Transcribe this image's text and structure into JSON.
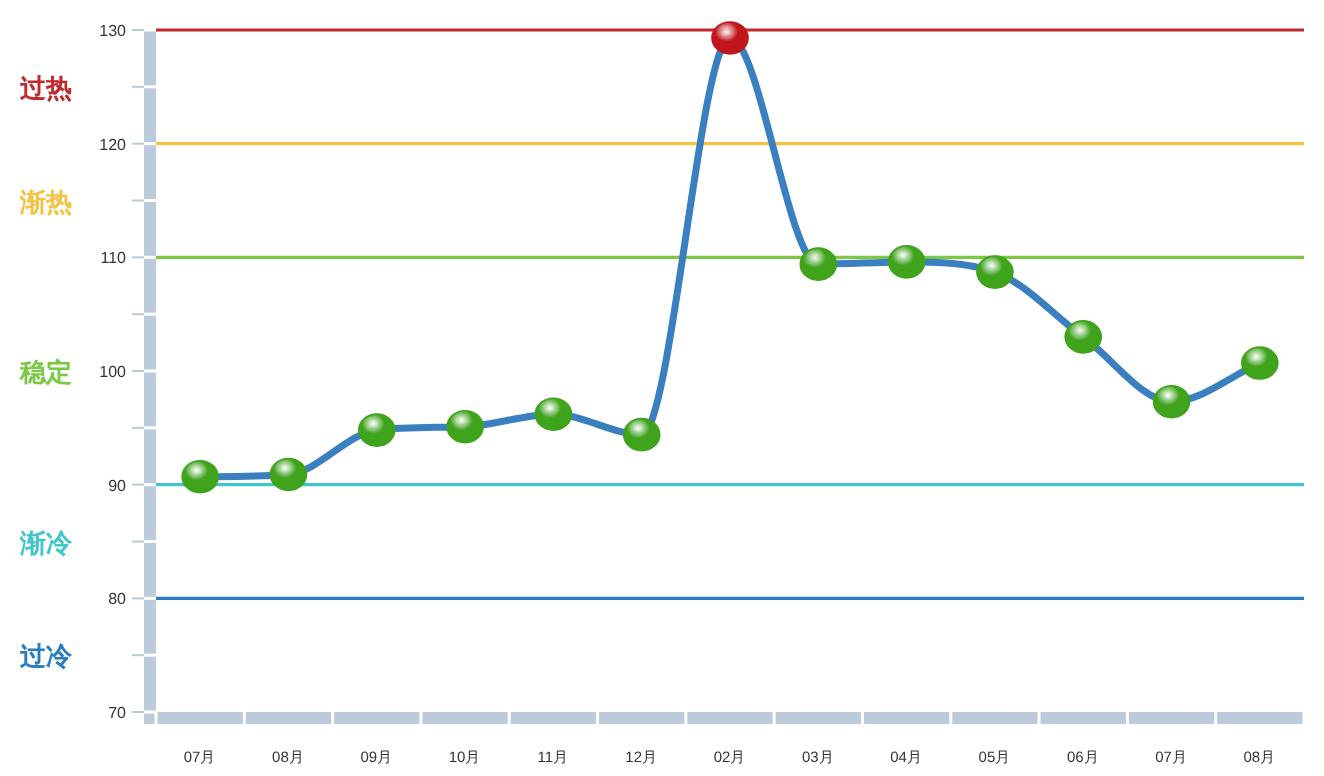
{
  "chart_data": {
    "type": "line",
    "categories": [
      "07月",
      "08月",
      "09月",
      "10月",
      "11月",
      "12月",
      "02月",
      "03月",
      "04月",
      "05月",
      "06月",
      "07月",
      "08月"
    ],
    "series": [
      {
        "color": "#3a7fc0",
        "values": [
          90.7,
          90.9,
          94.8,
          95.1,
          96.2,
          94.4,
          129.3,
          109.4,
          109.6,
          108.7,
          103.0,
          97.3,
          100.7
        ],
        "colors": [
          "#3fa31c",
          "#3fa31c",
          "#3fa31c",
          "#3fa31c",
          "#3fa31c",
          "#3fa31c",
          "#c0161b",
          "#3fa31c",
          "#3fa31c",
          "#3fa31c",
          "#3fa31c",
          "#3fa31c",
          "#3fa31c"
        ]
      }
    ],
    "ylim": [
      70,
      130
    ],
    "yticks": [
      70,
      {
        "value": 75,
        "label": null
      },
      80,
      {
        "value": 85,
        "label": null
      },
      90,
      {
        "value": 95,
        "label": null
      },
      100,
      {
        "value": 105,
        "label": null
      },
      110,
      {
        "value": 115,
        "label": null
      },
      120,
      {
        "value": 125,
        "label": null
      },
      130
    ],
    "marker": "circle",
    "line_style": "solid",
    "ref_lines": [
      {
        "axis": "y",
        "value": 130,
        "color": "#c0282c",
        "label": "过热"
      },
      {
        "axis": "y",
        "value": 120,
        "color": "#f5c242",
        "label": "渐热"
      },
      {
        "axis": "y",
        "value": 110,
        "color": "#7bc843",
        "label": "稳定"
      },
      {
        "axis": "y",
        "value": 90,
        "color": "#3fc6c8",
        "label": "渐冷"
      },
      {
        "axis": "y",
        "value": 80,
        "color": "#2a7cc0",
        "label": "过冷"
      }
    ]
  }
}
